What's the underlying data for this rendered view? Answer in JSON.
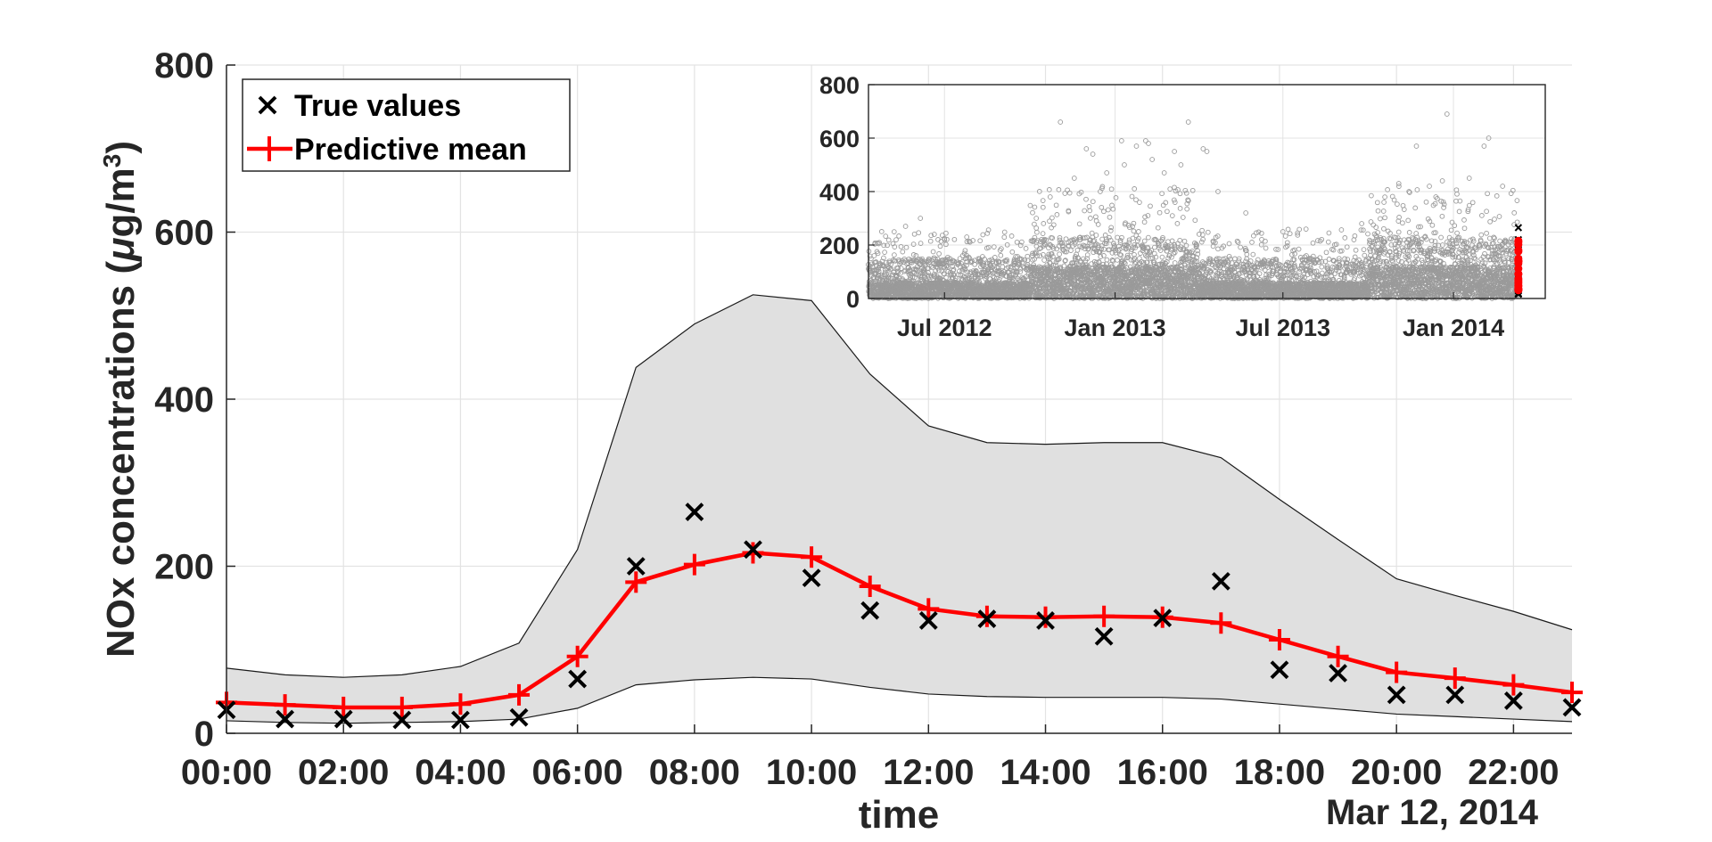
{
  "chart_data": [
    {
      "type": "line",
      "xlabel": "time",
      "ylabel_parts": [
        "NOx concentrations (",
        "μ",
        "g/m",
        "3",
        ")"
      ],
      "date_label": "Mar 12, 2014",
      "ylim": [
        0,
        800
      ],
      "yticks": [
        0,
        200,
        400,
        600,
        800
      ],
      "xlim": [
        0,
        23
      ],
      "xtick_values": [
        0,
        2,
        4,
        6,
        8,
        10,
        12,
        14,
        16,
        18,
        20,
        22
      ],
      "xtick_labels": [
        "00:00",
        "02:00",
        "04:00",
        "06:00",
        "08:00",
        "10:00",
        "12:00",
        "14:00",
        "16:00",
        "18:00",
        "20:00",
        "22:00"
      ],
      "grid": true,
      "legend": {
        "position": "top-left",
        "entries": [
          {
            "label": "True values",
            "marker": "x",
            "color": "#000000"
          },
          {
            "label": "Predictive mean",
            "marker": "+",
            "line": true,
            "color": "#ff0000"
          }
        ]
      },
      "band": {
        "fill": "#e0e0e0",
        "x": [
          0,
          1,
          2,
          3,
          4,
          5,
          6,
          7,
          8,
          9,
          10,
          11,
          12,
          13,
          14,
          15,
          16,
          17,
          18,
          19,
          20,
          21,
          22,
          23
        ],
        "upper": [
          78,
          70,
          67,
          70,
          80,
          108,
          220,
          438,
          490,
          525,
          518,
          430,
          368,
          348,
          346,
          348,
          348,
          330,
          280,
          232,
          185,
          165,
          146,
          124
        ],
        "lower": [
          15,
          13,
          12,
          13,
          14,
          17,
          30,
          58,
          64,
          67,
          65,
          55,
          47,
          44,
          43,
          43,
          43,
          41,
          35,
          29,
          23,
          20,
          17,
          14
        ]
      },
      "series": [
        {
          "name": "True values",
          "type": "scatter",
          "marker": "x",
          "color": "#000000",
          "x": [
            0,
            1,
            2,
            3,
            4,
            5,
            6,
            7,
            8,
            9,
            10,
            11,
            12,
            13,
            14,
            15,
            16,
            17,
            18,
            19,
            20,
            21,
            22,
            23
          ],
          "y": [
            28,
            17,
            17,
            16,
            16,
            19,
            65,
            200,
            265,
            220,
            186,
            147,
            135,
            137,
            135,
            116,
            138,
            182,
            76,
            72,
            46,
            46,
            39,
            31
          ]
        },
        {
          "name": "Predictive mean",
          "type": "line",
          "marker": "+",
          "color": "#ff0000",
          "x": [
            0,
            1,
            2,
            3,
            4,
            5,
            6,
            7,
            8,
            9,
            10,
            11,
            12,
            13,
            14,
            15,
            16,
            17,
            18,
            19,
            20,
            21,
            22,
            23
          ],
          "y": [
            37,
            34,
            31,
            31,
            35,
            46,
            92,
            181,
            202,
            216,
            211,
            176,
            149,
            140,
            139,
            140,
            139,
            132,
            112,
            92,
            73,
            66,
            58,
            49
          ]
        }
      ]
    },
    {
      "type": "scatter",
      "role": "inset",
      "ylim": [
        0,
        800
      ],
      "yticks": [
        0,
        200,
        400,
        600,
        800
      ],
      "xlim": [
        "2012-04-10",
        "2014-04-10"
      ],
      "xtick_values": [
        "2012-07-01",
        "2013-01-01",
        "2013-07-01",
        "2014-01-01"
      ],
      "xtick_labels": [
        "Jul 2012",
        "Jan 2013",
        "Jul 2013",
        "Jan 2014"
      ],
      "grid": true,
      "background_series": {
        "color": "#9a9a9a",
        "marker": "o",
        "x_range": [
          "2012-04-10",
          "2014-03-12"
        ],
        "typical_range": [
          0,
          200
        ],
        "points": [
          [
            "2012-05-20",
            270
          ],
          [
            "2012-06-05",
            300
          ],
          [
            "2012-06-20",
            240
          ],
          [
            "2012-07-01",
            220
          ],
          [
            "2012-07-25",
            230
          ],
          [
            "2012-08-30",
            180
          ],
          [
            "2012-10-08",
            300
          ],
          [
            "2012-10-23",
            380
          ],
          [
            "2012-11-03",
            660
          ],
          [
            "2012-11-18",
            450
          ],
          [
            "2012-12-01",
            560
          ],
          [
            "2012-12-08",
            540
          ],
          [
            "2012-12-16",
            400
          ],
          [
            "2012-12-23",
            470
          ],
          [
            "2013-01-08",
            590
          ],
          [
            "2013-01-11",
            500
          ],
          [
            "2013-01-24",
            570
          ],
          [
            "2013-02-03",
            590
          ],
          [
            "2013-02-06",
            580
          ],
          [
            "2013-02-10",
            520
          ],
          [
            "2013-02-23",
            470
          ],
          [
            "2013-03-06",
            550
          ],
          [
            "2013-03-13",
            500
          ],
          [
            "2013-03-21",
            660
          ],
          [
            "2013-04-06",
            560
          ],
          [
            "2013-04-10",
            550
          ],
          [
            "2013-04-22",
            400
          ],
          [
            "2013-05-22",
            320
          ],
          [
            "2013-07-01",
            250
          ],
          [
            "2013-09-24",
            280
          ],
          [
            "2013-10-18",
            360
          ],
          [
            "2013-11-03",
            430
          ],
          [
            "2013-11-14",
            400
          ],
          [
            "2013-11-22",
            570
          ],
          [
            "2013-12-06",
            420
          ],
          [
            "2013-12-13",
            380
          ],
          [
            "2013-12-20",
            440
          ],
          [
            "2013-12-25",
            690
          ],
          [
            "2014-01-18",
            450
          ],
          [
            "2014-02-03",
            570
          ],
          [
            "2014-02-08",
            600
          ],
          [
            "2014-02-23",
            420
          ]
        ]
      },
      "highlight": {
        "date": "2014-03-12",
        "true_color": "#000000",
        "mean_color": "#ff0000"
      }
    }
  ]
}
